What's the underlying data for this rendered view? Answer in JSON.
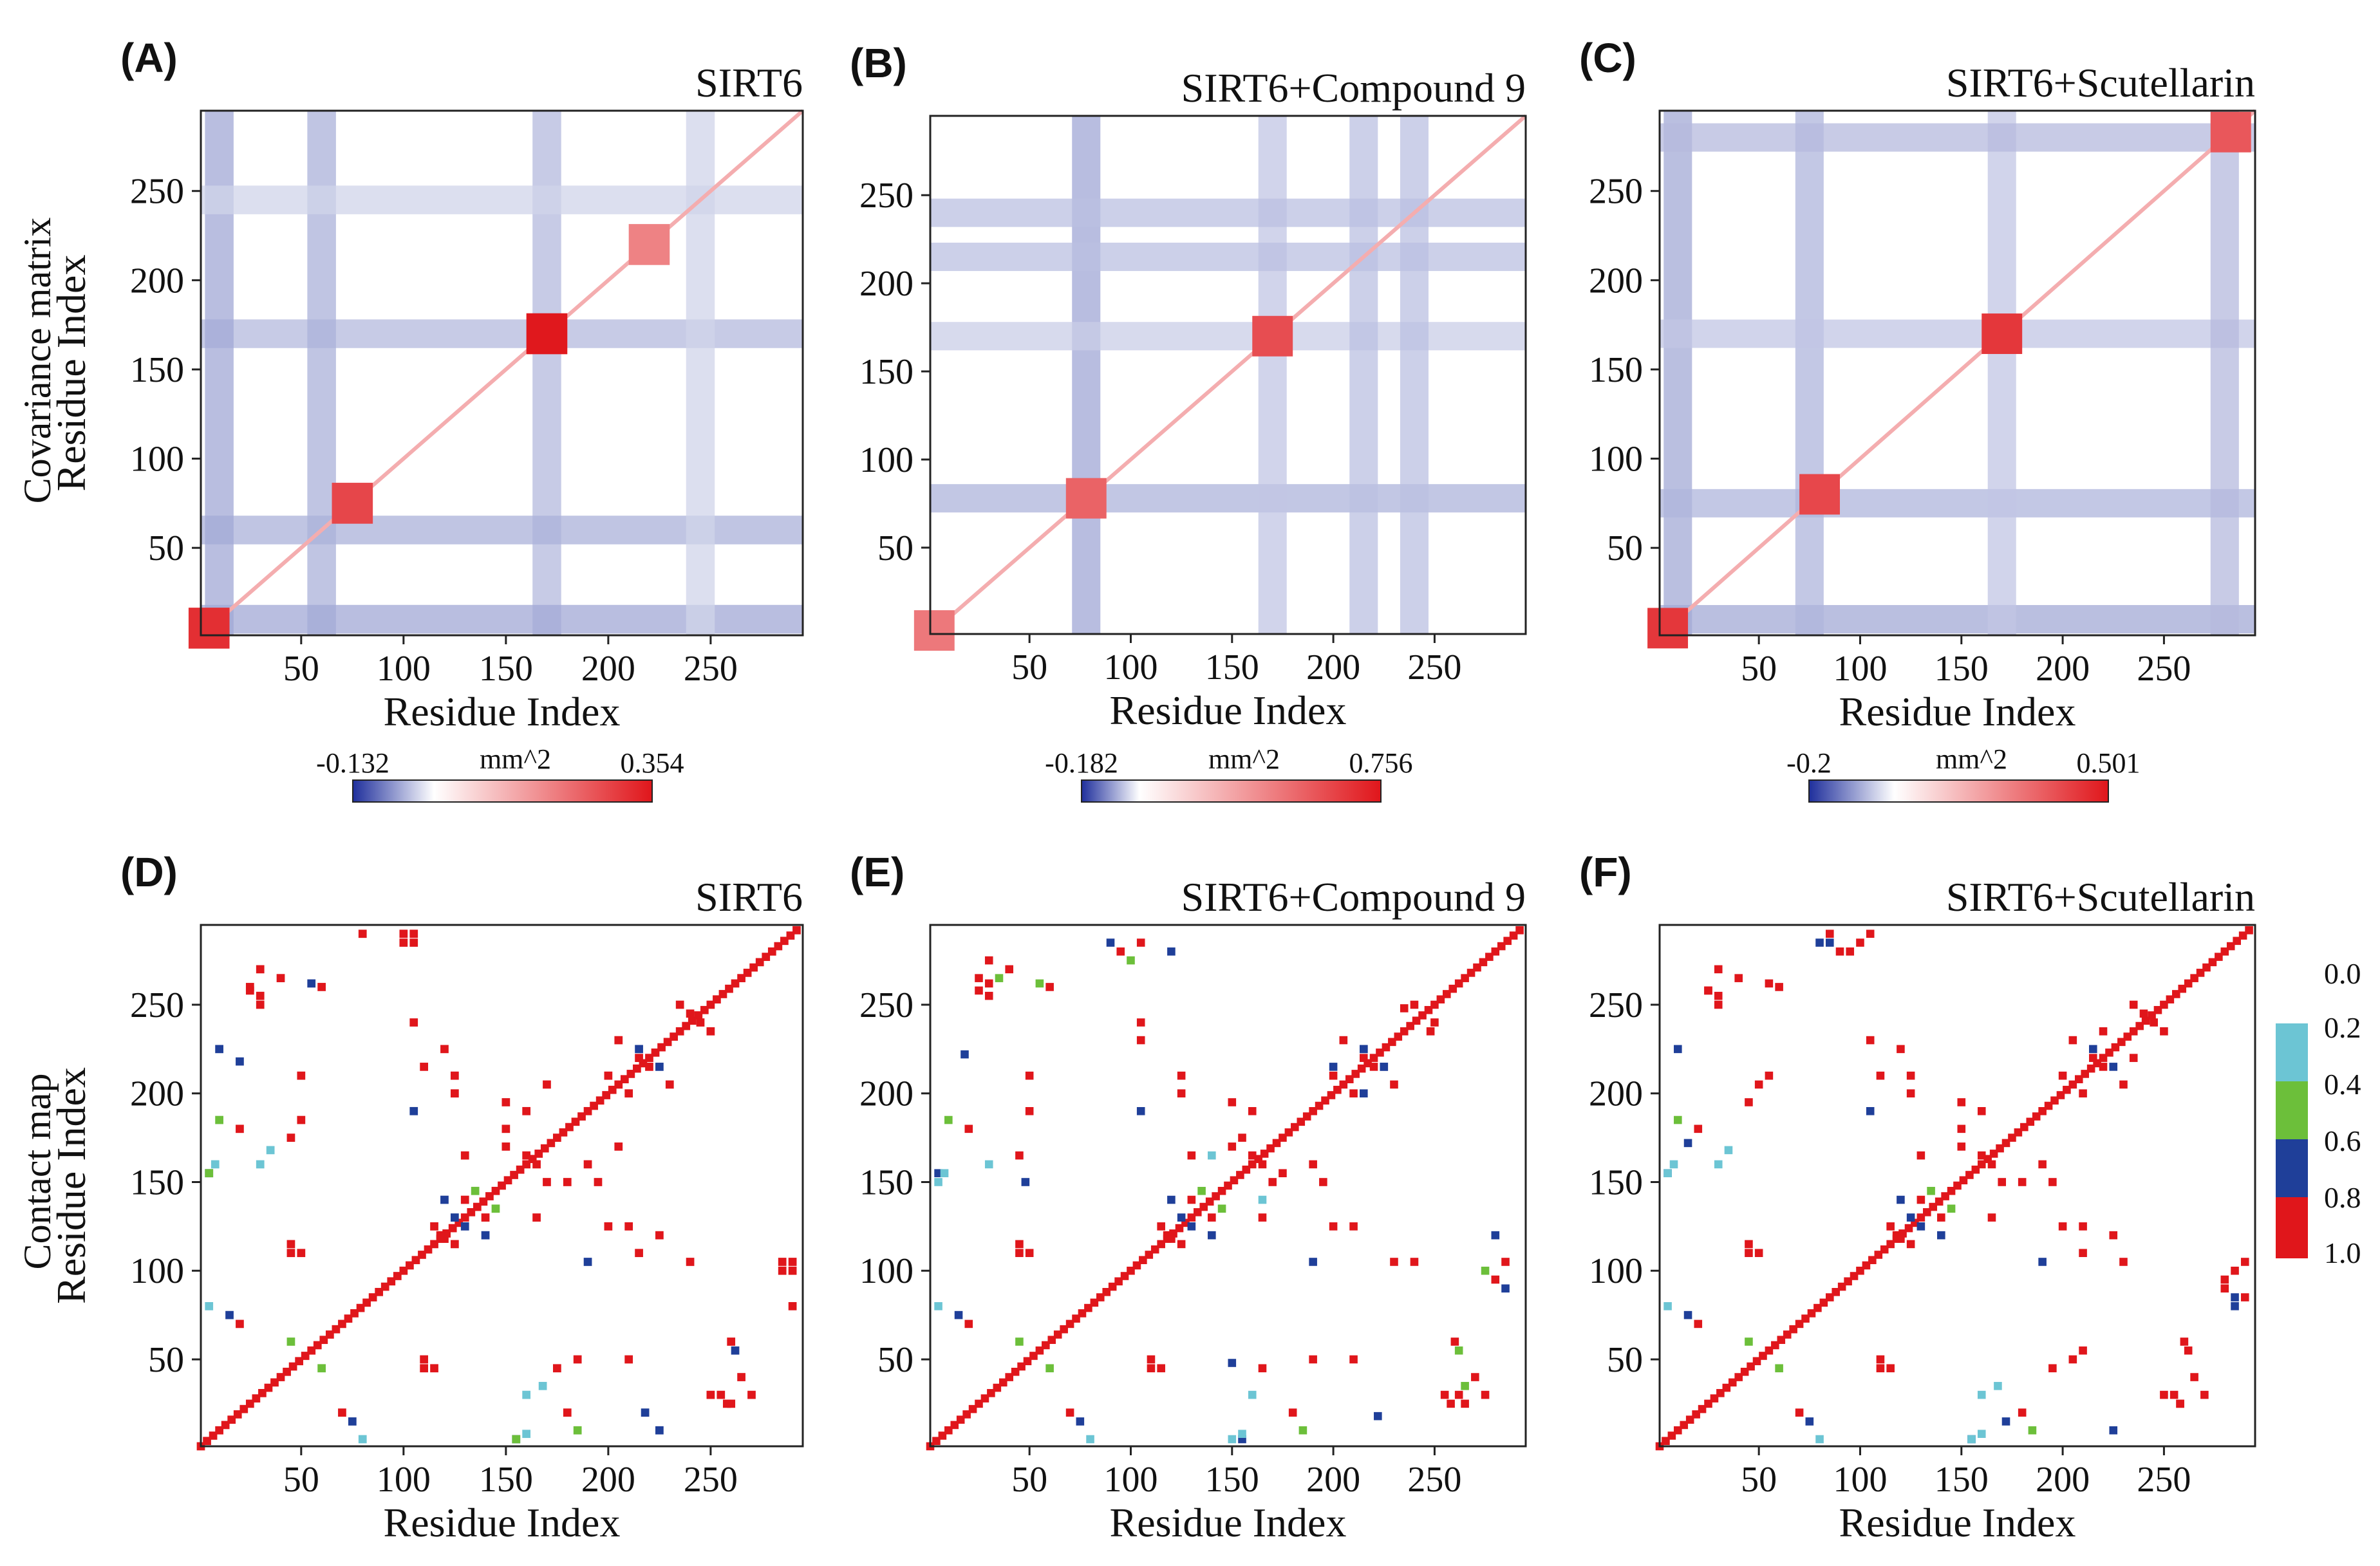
{
  "rows": {
    "top_label": "Covariance matrix",
    "bottom_label": "Contact map"
  },
  "colors": {
    "negative": "#1f2f9c",
    "positive": "#e0161b",
    "neutral": "#ffffff",
    "legend_0_2": "#6cc5d4",
    "legend_0_4": "#6cbf3a",
    "legend_0_6": "#1f3f99",
    "legend_0_8": "#e0161b"
  },
  "contact_legend": {
    "labels": [
      "0.0",
      "0.2",
      "0.4",
      "0.6",
      "0.8",
      "1.0"
    ]
  },
  "chart_data": [
    {
      "type": "heatmap",
      "panel": "(A)",
      "title": "SIRT6",
      "xlabel": "Residue Index",
      "ylabel": "Residue Index",
      "xlim": [
        1,
        295
      ],
      "ylim": [
        1,
        295
      ],
      "xticks": [
        50,
        100,
        150,
        200,
        250
      ],
      "yticks": [
        50,
        100,
        150,
        200,
        250
      ],
      "colorbar": {
        "min": -0.132,
        "max": 0.354,
        "unit": "mm^2",
        "min_label": "-0.132",
        "max_label": "0.354"
      },
      "hotspots": [
        {
          "x": 170,
          "y": 170,
          "value": 0.35
        },
        {
          "x": 75,
          "y": 75,
          "value": 0.25
        },
        {
          "x": 5,
          "y": 5,
          "value": 0.3
        },
        {
          "x": 220,
          "y": 220,
          "value": 0.12
        }
      ],
      "bands": [
        {
          "axis": "y",
          "at": 170,
          "value": -0.08
        },
        {
          "axis": "x",
          "at": 170,
          "value": -0.08
        },
        {
          "axis": "y",
          "at": 60,
          "value": -0.09
        },
        {
          "axis": "x",
          "at": 60,
          "value": -0.09
        },
        {
          "axis": "y",
          "at": 10,
          "value": -0.1
        },
        {
          "axis": "x",
          "at": 10,
          "value": -0.1
        },
        {
          "axis": "y",
          "at": 245,
          "value": -0.05
        },
        {
          "axis": "x",
          "at": 245,
          "value": -0.05
        }
      ]
    },
    {
      "type": "heatmap",
      "panel": "(B)",
      "title": "SIRT6+Compound 9",
      "xlabel": "Residue Index",
      "ylabel": "",
      "xlim": [
        1,
        295
      ],
      "ylim": [
        1,
        295
      ],
      "xticks": [
        50,
        100,
        150,
        200,
        250
      ],
      "yticks": [
        50,
        100,
        150,
        200,
        250
      ],
      "colorbar": {
        "min": -0.182,
        "max": 0.756,
        "unit": "mm^2",
        "min_label": "-0.182",
        "max_label": "0.756"
      },
      "hotspots": [
        {
          "x": 170,
          "y": 170,
          "value": 0.5
        },
        {
          "x": 78,
          "y": 78,
          "value": 0.4
        },
        {
          "x": 3,
          "y": 3,
          "value": 0.3
        }
      ],
      "bands": [
        {
          "axis": "x",
          "at": 78,
          "value": -0.14
        },
        {
          "axis": "y",
          "at": 78,
          "value": -0.12
        },
        {
          "axis": "x",
          "at": 170,
          "value": -0.09
        },
        {
          "axis": "y",
          "at": 170,
          "value": -0.08
        },
        {
          "axis": "x",
          "at": 215,
          "value": -0.1
        },
        {
          "axis": "y",
          "at": 215,
          "value": -0.1
        },
        {
          "axis": "x",
          "at": 240,
          "value": -0.1
        },
        {
          "axis": "y",
          "at": 240,
          "value": -0.1
        }
      ]
    },
    {
      "type": "heatmap",
      "panel": "(C)",
      "title": "SIRT6+Scutellarin",
      "xlabel": "Residue Index",
      "ylabel": "",
      "xlim": [
        1,
        295
      ],
      "ylim": [
        1,
        295
      ],
      "xticks": [
        50,
        100,
        150,
        200,
        250
      ],
      "yticks": [
        50,
        100,
        150,
        200,
        250
      ],
      "colorbar": {
        "min": -0.2,
        "max": 0.501,
        "unit": "mm^2",
        "min_label": "-0.2",
        "max_label": "0.501"
      },
      "hotspots": [
        {
          "x": 170,
          "y": 170,
          "value": 0.4
        },
        {
          "x": 80,
          "y": 80,
          "value": 0.35
        },
        {
          "x": 5,
          "y": 5,
          "value": 0.4
        },
        {
          "x": 283,
          "y": 283,
          "value": 0.3
        }
      ],
      "bands": [
        {
          "axis": "x",
          "at": 10,
          "value": -0.15
        },
        {
          "axis": "y",
          "at": 10,
          "value": -0.15
        },
        {
          "axis": "x",
          "at": 75,
          "value": -0.13
        },
        {
          "axis": "y",
          "at": 75,
          "value": -0.13
        },
        {
          "axis": "x",
          "at": 170,
          "value": -0.1
        },
        {
          "axis": "y",
          "at": 170,
          "value": -0.1
        },
        {
          "axis": "x",
          "at": 280,
          "value": -0.12
        },
        {
          "axis": "y",
          "at": 280,
          "value": -0.12
        }
      ]
    },
    {
      "type": "heatmap",
      "panel": "(D)",
      "title": "SIRT6",
      "xlabel": "Residue Index",
      "ylabel": "Residue Index",
      "xlim": [
        1,
        295
      ],
      "ylim": [
        1,
        295
      ],
      "xticks": [
        50,
        100,
        150,
        200,
        250
      ],
      "yticks": [
        50,
        100,
        150,
        200,
        250
      ],
      "contacts": [
        [
          25,
          258,
          5
        ],
        [
          30,
          255,
          5
        ],
        [
          50,
          210,
          5
        ],
        [
          100,
          290,
          5
        ],
        [
          105,
          285,
          5
        ],
        [
          45,
          110,
          5
        ],
        [
          80,
          290,
          5
        ],
        [
          110,
          50,
          5
        ],
        [
          115,
          45,
          5
        ],
        [
          175,
          45,
          5
        ],
        [
          185,
          50,
          5
        ],
        [
          250,
          30,
          5
        ],
        [
          260,
          25,
          5
        ],
        [
          285,
          100,
          5
        ],
        [
          290,
          105,
          5
        ],
        [
          240,
          105,
          5
        ],
        [
          215,
          110,
          5
        ],
        [
          150,
          170,
          5
        ],
        [
          160,
          165,
          5
        ],
        [
          165,
          130,
          5
        ],
        [
          180,
          150,
          5
        ],
        [
          190,
          160,
          5
        ],
        [
          195,
          150,
          5
        ],
        [
          210,
          125,
          4
        ],
        [
          225,
          120,
          5
        ],
        [
          130,
          140,
          4
        ],
        [
          125,
          130,
          3
        ],
        [
          140,
          120,
          3
        ],
        [
          145,
          135,
          2
        ],
        [
          115,
          125,
          4
        ],
        [
          120,
          118,
          5
        ],
        [
          210,
          200,
          4
        ],
        [
          220,
          215,
          4
        ],
        [
          230,
          205,
          5
        ],
        [
          215,
          225,
          3
        ],
        [
          235,
          250,
          4
        ],
        [
          245,
          240,
          5
        ],
        [
          20,
          218,
          3
        ],
        [
          10,
          185,
          2
        ],
        [
          5,
          155,
          3
        ],
        [
          30,
          160,
          1
        ],
        [
          35,
          168,
          1
        ],
        [
          155,
          5,
          2
        ],
        [
          160,
          8,
          1
        ],
        [
          225,
          10,
          3
        ],
        [
          70,
          20,
          4
        ],
        [
          180,
          20,
          5
        ],
        [
          5,
          80,
          1
        ],
        [
          15,
          75,
          3
        ],
        [
          60,
          45,
          2
        ],
        [
          105,
          190,
          3
        ],
        [
          260,
          60,
          5
        ],
        [
          262,
          55,
          3
        ],
        [
          265,
          40,
          5
        ],
        [
          270,
          30,
          5
        ],
        [
          200,
          125,
          5
        ],
        [
          205,
          170,
          5
        ]
      ]
    },
    {
      "type": "heatmap",
      "panel": "(E)",
      "title": "SIRT6+Compound 9",
      "xlabel": "Residue Index",
      "ylabel": "",
      "xlim": [
        1,
        295
      ],
      "ylim": [
        1,
        295
      ],
      "xticks": [
        50,
        100,
        150,
        200,
        250
      ],
      "yticks": [
        50,
        100,
        150,
        200,
        250
      ],
      "contacts": [
        [
          25,
          258,
          5
        ],
        [
          30,
          262,
          5
        ],
        [
          50,
          210,
          5
        ],
        [
          90,
          285,
          3
        ],
        [
          95,
          280,
          5
        ],
        [
          45,
          110,
          5
        ],
        [
          35,
          265,
          2
        ],
        [
          110,
          50,
          5
        ],
        [
          115,
          45,
          5
        ],
        [
          165,
          45,
          5
        ],
        [
          190,
          50,
          5
        ],
        [
          255,
          30,
          5
        ],
        [
          265,
          25,
          5
        ],
        [
          275,
          100,
          2
        ],
        [
          285,
          105,
          4
        ],
        [
          280,
          120,
          3
        ],
        [
          240,
          105,
          5
        ],
        [
          150,
          170,
          5
        ],
        [
          160,
          165,
          5
        ],
        [
          165,
          130,
          5
        ],
        [
          175,
          155,
          5
        ],
        [
          190,
          160,
          5
        ],
        [
          195,
          150,
          5
        ],
        [
          210,
          125,
          4
        ],
        [
          230,
          105,
          5
        ],
        [
          130,
          140,
          4
        ],
        [
          125,
          130,
          3
        ],
        [
          140,
          120,
          3
        ],
        [
          145,
          135,
          2
        ],
        [
          115,
          125,
          4
        ],
        [
          120,
          118,
          5
        ],
        [
          210,
          200,
          4
        ],
        [
          220,
          215,
          4
        ],
        [
          230,
          205,
          5
        ],
        [
          215,
          225,
          3
        ],
        [
          240,
          250,
          5
        ],
        [
          248,
          235,
          5
        ],
        [
          18,
          222,
          3
        ],
        [
          10,
          185,
          2
        ],
        [
          5,
          155,
          3
        ],
        [
          30,
          160,
          1
        ],
        [
          140,
          165,
          1
        ],
        [
          150,
          5,
          1
        ],
        [
          155,
          8,
          1
        ],
        [
          70,
          20,
          4
        ],
        [
          180,
          20,
          5
        ],
        [
          5,
          80,
          1
        ],
        [
          15,
          75,
          3
        ],
        [
          60,
          45,
          2
        ],
        [
          105,
          190,
          3
        ],
        [
          150,
          48,
          3
        ],
        [
          260,
          60,
          5
        ],
        [
          262,
          55,
          2
        ],
        [
          270,
          40,
          5
        ],
        [
          275,
          30,
          5
        ],
        [
          200,
          125,
          5
        ],
        [
          215,
          200,
          3
        ],
        [
          225,
          215,
          3
        ]
      ]
    },
    {
      "type": "heatmap",
      "panel": "(F)",
      "title": "SIRT6+Scutellarin",
      "xlabel": "Residue Index",
      "ylabel": "",
      "xlim": [
        1,
        295
      ],
      "ylim": [
        1,
        295
      ],
      "xticks": [
        50,
        100,
        150,
        200,
        250
      ],
      "yticks": [
        50,
        100,
        150,
        200,
        250
      ],
      "contacts": [
        [
          25,
          258,
          5
        ],
        [
          30,
          255,
          5
        ],
        [
          55,
          210,
          5
        ],
        [
          85,
          290,
          5
        ],
        [
          95,
          280,
          4
        ],
        [
          45,
          110,
          5
        ],
        [
          80,
          285,
          3
        ],
        [
          110,
          50,
          5
        ],
        [
          115,
          45,
          5
        ],
        [
          205,
          50,
          5
        ],
        [
          195,
          45,
          5
        ],
        [
          250,
          30,
          5
        ],
        [
          258,
          25,
          5
        ],
        [
          285,
          100,
          5
        ],
        [
          290,
          105,
          5
        ],
        [
          230,
          105,
          5
        ],
        [
          210,
          110,
          5
        ],
        [
          150,
          170,
          5
        ],
        [
          160,
          165,
          5
        ],
        [
          165,
          130,
          5
        ],
        [
          180,
          150,
          5
        ],
        [
          190,
          160,
          5
        ],
        [
          195,
          150,
          5
        ],
        [
          210,
          125,
          4
        ],
        [
          225,
          120,
          5
        ],
        [
          130,
          140,
          4
        ],
        [
          125,
          130,
          3
        ],
        [
          140,
          120,
          3
        ],
        [
          145,
          135,
          2
        ],
        [
          115,
          125,
          4
        ],
        [
          120,
          118,
          5
        ],
        [
          210,
          200,
          4
        ],
        [
          220,
          215,
          4
        ],
        [
          230,
          205,
          5
        ],
        [
          215,
          225,
          3
        ],
        [
          235,
          250,
          4
        ],
        [
          245,
          240,
          5
        ],
        [
          15,
          172,
          3
        ],
        [
          10,
          185,
          2
        ],
        [
          5,
          155,
          3
        ],
        [
          30,
          160,
          1
        ],
        [
          35,
          168,
          1
        ],
        [
          155,
          5,
          1
        ],
        [
          160,
          8,
          1
        ],
        [
          225,
          10,
          3
        ],
        [
          70,
          20,
          4
        ],
        [
          180,
          20,
          5
        ],
        [
          5,
          80,
          1
        ],
        [
          15,
          75,
          3
        ],
        [
          60,
          45,
          2
        ],
        [
          105,
          190,
          3
        ],
        [
          260,
          60,
          5
        ],
        [
          262,
          55,
          5
        ],
        [
          265,
          40,
          5
        ],
        [
          270,
          30,
          5
        ],
        [
          200,
          125,
          5
        ],
        [
          280,
          90,
          5
        ],
        [
          285,
          85,
          3
        ],
        [
          235,
          220,
          4
        ]
      ]
    }
  ]
}
